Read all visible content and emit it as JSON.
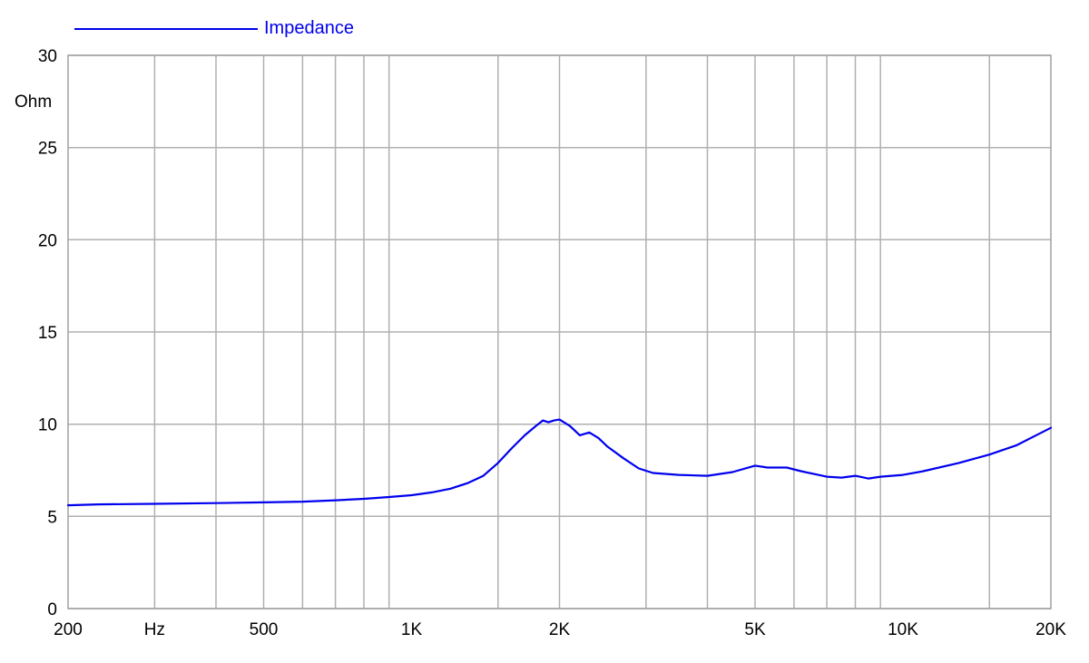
{
  "chart_data": {
    "type": "line",
    "title": "",
    "xlabel": "",
    "ylabel": "Ohm",
    "x_scale": "log",
    "xlim": [
      200,
      20000
    ],
    "ylim": [
      0,
      30
    ],
    "grid": true,
    "legend_position": "top-left",
    "x_ticks": [
      {
        "value": 200,
        "label": "200"
      },
      {
        "value": 300,
        "label": "Hz"
      },
      {
        "value": 500,
        "label": "500"
      },
      {
        "value": 1000,
        "label": "1K"
      },
      {
        "value": 2000,
        "label": "2K"
      },
      {
        "value": 5000,
        "label": "5K"
      },
      {
        "value": 10000,
        "label": "10K"
      },
      {
        "value": 20000,
        "label": "20K"
      }
    ],
    "x_minor_grid": [
      300,
      400,
      500,
      600,
      700,
      800,
      900,
      1500,
      2000,
      3000,
      4000,
      5000,
      6000,
      7000,
      8000,
      9000,
      15000
    ],
    "y_ticks": [
      {
        "value": 0,
        "label": "0"
      },
      {
        "value": 5,
        "label": "5"
      },
      {
        "value": 10,
        "label": "10"
      },
      {
        "value": 15,
        "label": "15"
      },
      {
        "value": 20,
        "label": "20"
      },
      {
        "value": 25,
        "label": "25"
      },
      {
        "value": 30,
        "label": "30"
      }
    ],
    "series": [
      {
        "name": "Impedance",
        "color": "#0000ee",
        "x": [
          200,
          230,
          300,
          400,
          500,
          600,
          700,
          800,
          900,
          1000,
          1100,
          1200,
          1300,
          1400,
          1500,
          1600,
          1700,
          1800,
          1850,
          1900,
          1950,
          2000,
          2100,
          2200,
          2300,
          2400,
          2500,
          2700,
          2900,
          3100,
          3500,
          4000,
          4500,
          5000,
          5300,
          5800,
          6200,
          7000,
          7500,
          8000,
          8500,
          9000,
          10000,
          11000,
          13000,
          15000,
          17000,
          20000
        ],
        "y": [
          5.6,
          5.65,
          5.68,
          5.72,
          5.76,
          5.8,
          5.87,
          5.95,
          6.05,
          6.15,
          6.3,
          6.5,
          6.8,
          7.2,
          7.9,
          8.7,
          9.4,
          9.95,
          10.2,
          10.1,
          10.2,
          10.25,
          9.9,
          9.4,
          9.55,
          9.25,
          8.8,
          8.15,
          7.6,
          7.35,
          7.25,
          7.2,
          7.4,
          7.75,
          7.65,
          7.65,
          7.45,
          7.15,
          7.1,
          7.2,
          7.05,
          7.15,
          7.25,
          7.45,
          7.9,
          8.35,
          8.85,
          9.8
        ]
      }
    ]
  }
}
